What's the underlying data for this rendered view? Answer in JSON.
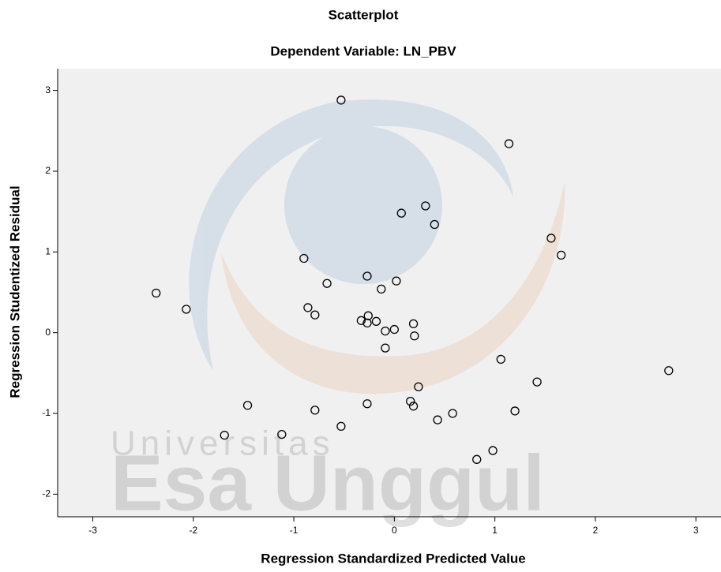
{
  "chart_data": {
    "type": "scatter",
    "title": "Scatterplot",
    "subtitle": "Dependent Variable: LN_PBV",
    "xlabel": "Regression Standardized Predicted Value",
    "ylabel": "Regression Studentized Residual",
    "watermark": [
      "Universitas",
      "Esa Unggul"
    ],
    "color": "#000000",
    "background": "#f0f0f0",
    "grid": false,
    "xlim": [
      -3.35,
      3.25
    ],
    "ylim": [
      -2.28,
      3.27
    ],
    "xticks": [
      -3,
      -2,
      -1,
      0,
      1,
      2,
      3
    ],
    "yticks": [
      -2,
      -1,
      0,
      1,
      2,
      3
    ],
    "x": [
      -2.37,
      -2.07,
      -1.69,
      -1.46,
      -1.12,
      -0.9,
      -0.67,
      -0.86,
      -0.79,
      -0.79,
      -0.53,
      -0.53,
      -0.27,
      -0.13,
      0.02,
      0.07,
      0.31,
      0.4,
      -0.33,
      -0.26,
      -0.27,
      -0.18,
      -0.09,
      0.0,
      -0.09,
      0.19,
      0.2,
      0.24,
      -0.27,
      0.16,
      0.19,
      0.43,
      0.58,
      0.82,
      0.98,
      1.06,
      1.2,
      1.14,
      1.42,
      1.56,
      1.66,
      2.73
    ],
    "values": [
      0.49,
      0.29,
      -1.27,
      -0.9,
      -1.26,
      0.92,
      0.61,
      0.31,
      0.22,
      -0.96,
      -1.16,
      2.88,
      0.7,
      0.54,
      0.64,
      1.48,
      1.57,
      1.34,
      0.15,
      0.21,
      0.12,
      0.14,
      0.02,
      0.04,
      -0.19,
      0.11,
      -0.04,
      -0.67,
      -0.88,
      -0.85,
      -0.91,
      -1.08,
      -1.0,
      -1.57,
      -1.46,
      -0.33,
      -0.97,
      2.34,
      -0.61,
      1.17,
      0.96,
      -0.47
    ]
  }
}
